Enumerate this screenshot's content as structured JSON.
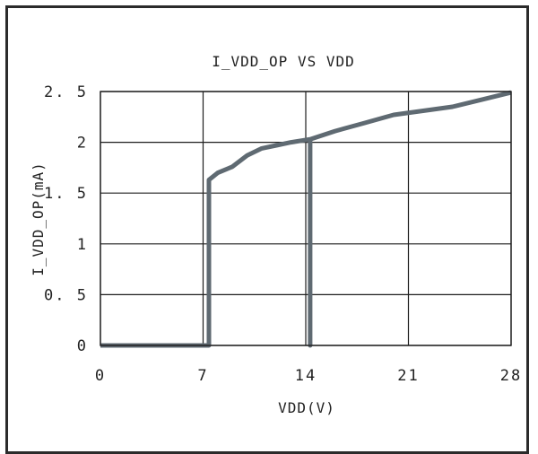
{
  "chart_data": {
    "type": "line",
    "title": "I_VDD_OP VS VDD",
    "xlabel": "VDD(V)",
    "ylabel": "I_VDD_OP(mA)",
    "xlim": [
      0,
      28
    ],
    "ylim": [
      0,
      2.5
    ],
    "xticks": [
      0,
      7,
      14,
      21,
      28
    ],
    "xtick_labels": [
      "0",
      "7",
      "14",
      "21",
      "28"
    ],
    "yticks": [
      0,
      0.5,
      1,
      1.5,
      2,
      2.5
    ],
    "ytick_labels": [
      "0",
      "0. 5",
      "1",
      "1. 5",
      "2",
      "2. 5"
    ],
    "grid": true,
    "series": [
      {
        "name": "",
        "color": "#5f6a72",
        "x": [
          0,
          7.4,
          7.4,
          8.0,
          9.0,
          10.0,
          11.0,
          12.0,
          13.0,
          14.3,
          14.3,
          14.3,
          16.0,
          18.0,
          20.0,
          22.0,
          24.0,
          26.0,
          28.0
        ],
        "y": [
          0,
          0,
          1.63,
          1.7,
          1.76,
          1.87,
          1.94,
          1.97,
          2.0,
          2.03,
          0,
          2.03,
          2.11,
          2.19,
          2.27,
          2.31,
          2.35,
          2.42,
          2.49
        ]
      }
    ]
  }
}
